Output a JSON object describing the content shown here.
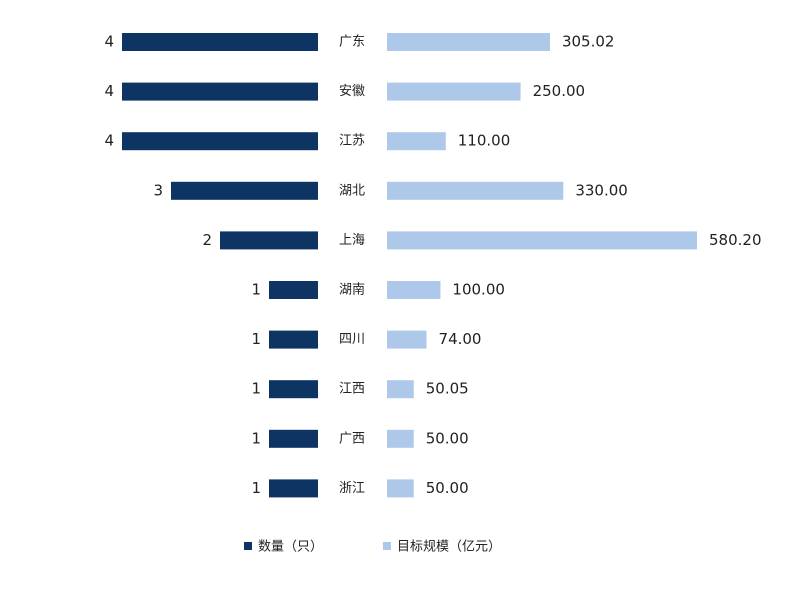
{
  "chart_data": {
    "type": "butterfly-bar",
    "categories": [
      "广东",
      "安徽",
      "江苏",
      "湖北",
      "上海",
      "湖南",
      "四川",
      "江西",
      "广西",
      "浙江"
    ],
    "series": [
      {
        "name": "数量（只）",
        "color": "#0d3463",
        "values": [
          4,
          4,
          4,
          3,
          2,
          1,
          1,
          1,
          1,
          1
        ]
      },
      {
        "name": "目标规模（亿元）",
        "color": "#adc8e8",
        "values": [
          305.02,
          250.0,
          110.0,
          330.0,
          580.2,
          100.0,
          74.0,
          50.05,
          50.0,
          50.0
        ],
        "value_labels": [
          "305.02",
          "250.00",
          "110.00",
          "330.00",
          "580.20",
          "100.00",
          "74.00",
          "50.05",
          "50.00",
          "50.00"
        ]
      }
    ],
    "legend": "bottom"
  }
}
